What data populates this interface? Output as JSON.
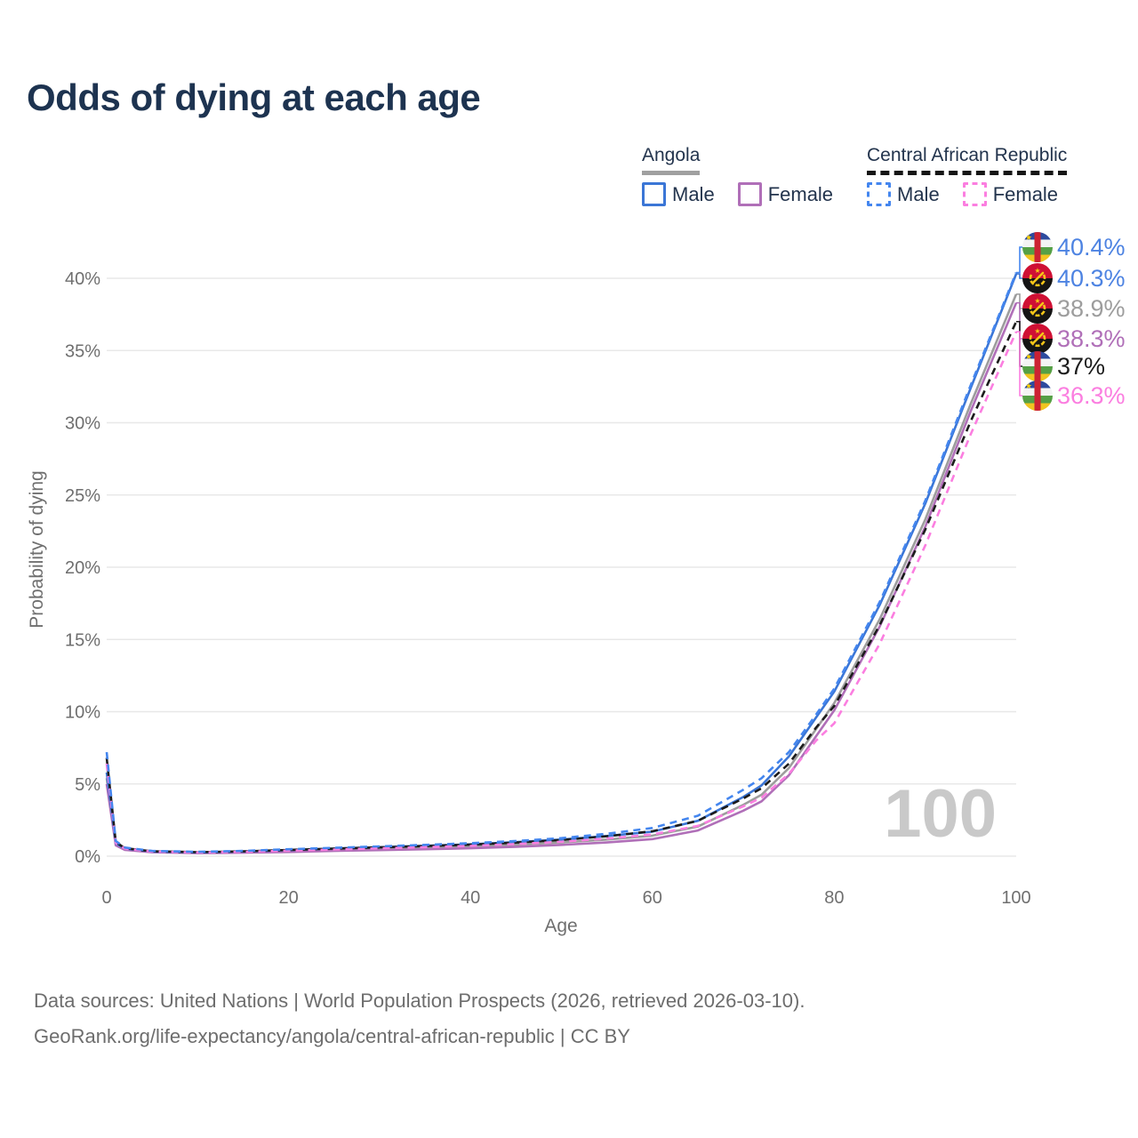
{
  "title": "Odds of dying at each age",
  "legend": {
    "angola": {
      "name": "Angola",
      "male_label": "Male",
      "female_label": "Female"
    },
    "car": {
      "name": "Central African Republic",
      "male_label": "Male",
      "female_label": "Female"
    }
  },
  "watermark": "100",
  "footer": {
    "line1": "Data sources: United Nations | World Population Prospects (2026, retrieved 2026-03-10).",
    "line2": "GeoRank.org/life-expectancy/angola/central-african-republic | CC BY"
  },
  "colors": {
    "title_text": "#1d3350",
    "legend_text": "#23344d",
    "axis_text": "#6f6f6f",
    "grid": "#e8e8e8",
    "watermark": "#c9c9c9",
    "footer_text": "#6d6d6d",
    "angola_male": "#3b76d6",
    "angola_female": "#b06fb8",
    "angola_all": "#9d9d9d",
    "car_male": "#4486ef",
    "car_female": "#fb7ee0",
    "car_all": "#1c1c1c",
    "blue_label": "#4d83e2",
    "angola_underline": "#a0a0a0",
    "car_underline": "#161616"
  },
  "chart_data": {
    "type": "line",
    "title": "Odds of dying at each age",
    "xlabel": "Age",
    "ylabel": "Probability of dying",
    "xlim": [
      0,
      100
    ],
    "ylim": [
      0,
      40
    ],
    "grid": true,
    "x_ticks": [
      0,
      20,
      40,
      60,
      80,
      100
    ],
    "y_ticks_percent": [
      0,
      5,
      10,
      15,
      20,
      25,
      30,
      35,
      40
    ],
    "y_tick_labels": [
      "0%",
      "5%",
      "10%",
      "15%",
      "20%",
      "25%",
      "30%",
      "35%",
      "40%"
    ],
    "x": [
      0,
      1,
      2,
      5,
      10,
      15,
      20,
      25,
      30,
      35,
      40,
      45,
      50,
      55,
      60,
      65,
      70,
      72,
      75,
      78,
      80,
      85,
      90,
      95,
      100
    ],
    "series": [
      {
        "id": "car_male",
        "name": "Central African Republic Male",
        "country": "Central African Republic",
        "sex": "Male",
        "line": "dashed",
        "color_key": "car_male",
        "label_color_key": "blue_label",
        "flag": "car",
        "end_label": "40.4%",
        "values": [
          7.2,
          1.05,
          0.6,
          0.36,
          0.3,
          0.36,
          0.48,
          0.58,
          0.68,
          0.78,
          0.9,
          1.05,
          1.25,
          1.55,
          1.95,
          2.8,
          4.6,
          5.4,
          7.2,
          9.8,
          11.6,
          17.6,
          24.6,
          32.6,
          40.4
        ]
      },
      {
        "id": "angola_male",
        "name": "Angola Male",
        "country": "Angola",
        "sex": "Male",
        "line": "solid",
        "color_key": "angola_male",
        "label_color_key": "blue_label",
        "flag": "angola",
        "end_label": "40.3%",
        "values": [
          5.8,
          0.9,
          0.52,
          0.32,
          0.26,
          0.32,
          0.42,
          0.52,
          0.62,
          0.72,
          0.82,
          0.97,
          1.15,
          1.4,
          1.7,
          2.45,
          4.1,
          4.9,
          6.9,
          9.6,
          11.4,
          17.4,
          24.4,
          32.4,
          40.3
        ]
      },
      {
        "id": "angola_all",
        "name": "Angola Both sexes",
        "country": "Angola",
        "sex": "Both",
        "line": "solid",
        "color_key": "angola_all",
        "label_color_key": "angola_all",
        "flag": "angola",
        "end_label": "38.9%",
        "values": [
          5.4,
          0.82,
          0.47,
          0.29,
          0.23,
          0.27,
          0.35,
          0.44,
          0.52,
          0.6,
          0.68,
          0.8,
          0.95,
          1.15,
          1.42,
          2.05,
          3.55,
          4.25,
          6.1,
          8.8,
          10.6,
          16.4,
          23.3,
          31.3,
          38.9
        ]
      },
      {
        "id": "angola_female",
        "name": "Angola Female",
        "country": "Angola",
        "sex": "Female",
        "line": "solid",
        "color_key": "angola_female",
        "label_color_key": "angola_female",
        "flag": "angola",
        "end_label": "38.3%",
        "values": [
          5.0,
          0.75,
          0.43,
          0.27,
          0.21,
          0.24,
          0.29,
          0.36,
          0.42,
          0.48,
          0.55,
          0.65,
          0.78,
          0.95,
          1.18,
          1.78,
          3.15,
          3.8,
          5.6,
          8.3,
          10.1,
          15.9,
          22.8,
          30.8,
          38.3
        ]
      },
      {
        "id": "car_all",
        "name": "Central African Republic Both sexes",
        "country": "Central African Republic",
        "sex": "Both",
        "line": "dashed",
        "color_key": "car_all",
        "label_color_key": "car_all",
        "flag": "car",
        "end_label": "37%",
        "values": [
          6.8,
          0.98,
          0.55,
          0.34,
          0.28,
          0.33,
          0.43,
          0.52,
          0.61,
          0.7,
          0.8,
          0.94,
          1.12,
          1.38,
          1.72,
          2.45,
          4.0,
          4.7,
          6.4,
          8.9,
          10.4,
          16.0,
          22.6,
          30.1,
          37.0
        ]
      },
      {
        "id": "car_female",
        "name": "Central African Republic Female",
        "country": "Central African Republic",
        "sex": "Female",
        "line": "dashed",
        "color_key": "car_female",
        "label_color_key": "car_female",
        "flag": "car",
        "end_label": "36.3%",
        "values": [
          6.4,
          0.92,
          0.52,
          0.32,
          0.26,
          0.3,
          0.38,
          0.46,
          0.54,
          0.62,
          0.71,
          0.84,
          1.0,
          1.22,
          1.5,
          2.1,
          3.45,
          4.05,
          5.7,
          8.0,
          9.2,
          14.7,
          21.5,
          29.2,
          36.3
        ]
      }
    ]
  }
}
